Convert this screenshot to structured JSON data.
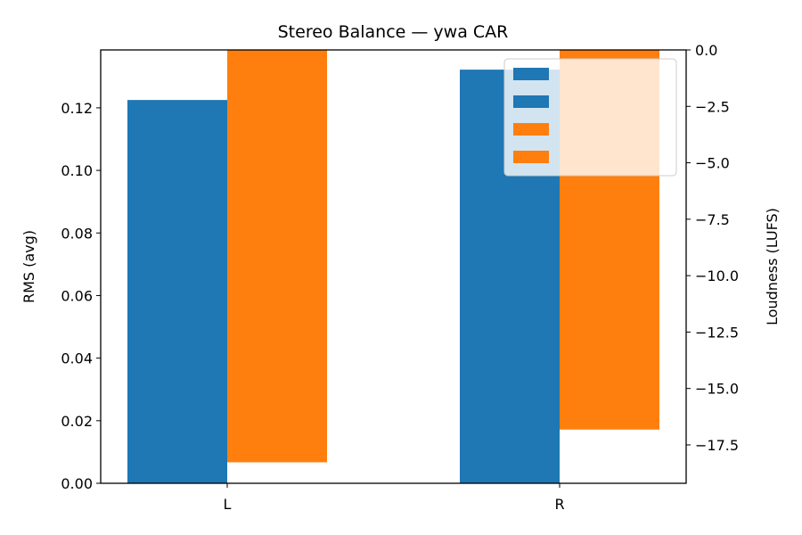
{
  "chart_data": {
    "type": "bar",
    "title": "Stereo Balance — ywa CAR",
    "categories": [
      "L",
      "R"
    ],
    "ylabel": "RMS (avg)",
    "y2label": "Loudness (LUFS)",
    "ylim": [
      0,
      0.1385
    ],
    "y2lim": [
      -19.2,
      0
    ],
    "yticks": [
      "0.00",
      "0.02",
      "0.04",
      "0.06",
      "0.08",
      "0.10",
      "0.12"
    ],
    "y2ticks": [
      "0.0",
      "−2.5",
      "−5.0",
      "−7.5",
      "−10.0",
      "−12.5",
      "−15.0",
      "−17.5"
    ],
    "series": [
      {
        "axis": "left",
        "color": "#1f77b4",
        "values": [
          0.1225,
          0.1322
        ]
      },
      {
        "axis": "right",
        "color": "#ff7f0e",
        "values": [
          -18.27,
          -16.82
        ]
      }
    ],
    "legend": {
      "placement": "upper-right",
      "entries": [
        {
          "color": "#1f77b4"
        },
        {
          "color": "#1f77b4"
        },
        {
          "color": "#ff7f0e"
        },
        {
          "color": "#ff7f0e"
        }
      ]
    },
    "grid": false
  }
}
